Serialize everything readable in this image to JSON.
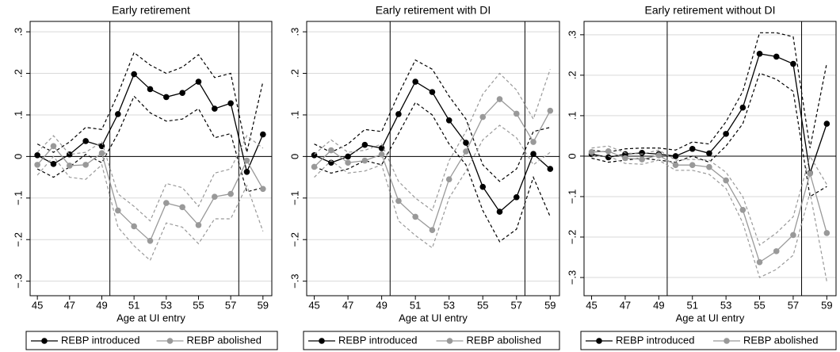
{
  "chart_data": [
    {
      "type": "line",
      "title": "Early retirement",
      "x_label": "Age at UI entry",
      "x": [
        45,
        46,
        47,
        48,
        49,
        50,
        51,
        52,
        53,
        54,
        55,
        56,
        57,
        58,
        59
      ],
      "xlim": [
        44.55,
        59.55
      ],
      "xticks": [
        45,
        47,
        49,
        51,
        53,
        55,
        57,
        59
      ],
      "ylim": [
        -0.335,
        0.325
      ],
      "yticks": [
        {
          "value": -0.3,
          "label": "−.3"
        },
        {
          "value": -0.2,
          "label": "−.2"
        },
        {
          "value": -0.1,
          "label": "−.1"
        },
        0,
        {
          "value": 0.1,
          "label": ".1"
        },
        {
          "value": 0.2,
          "label": ".2"
        },
        {
          "value": 0.3,
          "label": ".3"
        }
      ],
      "grid": true,
      "hline": 0,
      "vlines": [
        49.5,
        57.5
      ],
      "legend": "bottom",
      "series": [
        {
          "name": "REBP introduced",
          "color": "#000000",
          "values": [
            0.003,
            -0.018,
            0.005,
            0.037,
            0.025,
            0.102,
            0.198,
            0.162,
            0.143,
            0.153,
            0.18,
            0.115,
            0.128,
            -0.037,
            0.053
          ],
          "ci_upper": [
            0.03,
            0.01,
            0.035,
            0.07,
            0.065,
            0.15,
            0.25,
            0.22,
            0.2,
            0.215,
            0.245,
            0.19,
            0.2,
            0.01,
            0.18
          ],
          "ci_lower": [
            -0.03,
            -0.05,
            -0.025,
            0.005,
            -0.015,
            0.055,
            0.145,
            0.105,
            0.085,
            0.09,
            0.115,
            0.045,
            0.055,
            -0.085,
            -0.075
          ]
        },
        {
          "name": "REBP abolished",
          "color": "#999999",
          "values": [
            -0.02,
            0.025,
            -0.022,
            -0.02,
            0.008,
            -0.13,
            -0.168,
            -0.203,
            -0.112,
            -0.122,
            -0.165,
            -0.097,
            -0.09,
            -0.01,
            -0.078
          ],
          "ci_upper": [
            0.01,
            0.05,
            0.005,
            0.01,
            0.035,
            -0.09,
            -0.12,
            -0.155,
            -0.065,
            -0.075,
            -0.12,
            -0.04,
            -0.03,
            0.05,
            0.02
          ],
          "ci_lower": [
            -0.045,
            0,
            -0.05,
            -0.055,
            -0.02,
            -0.17,
            -0.215,
            -0.25,
            -0.16,
            -0.17,
            -0.21,
            -0.15,
            -0.15,
            -0.07,
            -0.18
          ]
        }
      ]
    },
    {
      "type": "line",
      "title": "Early retirement with DI",
      "x_label": "Age at UI entry",
      "x": [
        45,
        46,
        47,
        48,
        49,
        50,
        51,
        52,
        53,
        54,
        55,
        56,
        57,
        58,
        59
      ],
      "xlim": [
        44.55,
        59.55
      ],
      "xticks": [
        45,
        47,
        49,
        51,
        53,
        55,
        57,
        59
      ],
      "ylim": [
        -0.335,
        0.325
      ],
      "yticks": [
        {
          "value": -0.3,
          "label": "−.3"
        },
        {
          "value": -0.2,
          "label": "−.2"
        },
        {
          "value": -0.1,
          "label": "−.1"
        },
        0,
        {
          "value": 0.1,
          "label": ".1"
        },
        {
          "value": 0.2,
          "label": ".2"
        },
        {
          "value": 0.3,
          "label": ".3"
        }
      ],
      "grid": true,
      "hline": 0,
      "vlines": [
        49.5,
        57.5
      ],
      "legend": "bottom",
      "series": [
        {
          "name": "REBP introduced",
          "color": "#000000",
          "values": [
            0.003,
            -0.015,
            0.0,
            0.028,
            0.02,
            0.102,
            0.18,
            0.155,
            0.087,
            0.033,
            -0.073,
            -0.133,
            -0.098,
            0.006,
            -0.03
          ],
          "ci_upper": [
            0.03,
            0.01,
            0.03,
            0.065,
            0.06,
            0.15,
            0.232,
            0.21,
            0.145,
            0.09,
            -0.02,
            -0.06,
            -0.03,
            0.06,
            0.07
          ],
          "ci_lower": [
            -0.025,
            -0.04,
            -0.03,
            -0.01,
            -0.02,
            0.055,
            0.13,
            0.1,
            0.03,
            -0.02,
            -0.13,
            -0.205,
            -0.175,
            -0.05,
            -0.145
          ]
        },
        {
          "name": "REBP abolished",
          "color": "#999999",
          "values": [
            -0.025,
            0.015,
            -0.015,
            -0.01,
            0.005,
            -0.107,
            -0.145,
            -0.177,
            -0.055,
            0.012,
            0.095,
            0.138,
            0.103,
            0.035,
            0.11
          ],
          "ci_upper": [
            0.005,
            0.04,
            0.01,
            0.015,
            0.03,
            -0.06,
            -0.1,
            -0.13,
            -0.01,
            0.06,
            0.15,
            0.2,
            0.16,
            0.09,
            0.21
          ],
          "ci_lower": [
            -0.05,
            -0.01,
            -0.04,
            -0.035,
            -0.02,
            -0.155,
            -0.19,
            -0.22,
            -0.1,
            -0.035,
            0.04,
            0.075,
            0.045,
            -0.02,
            0.01
          ]
        }
      ]
    },
    {
      "type": "line",
      "title": "Early retirement without DI",
      "x_label": "Age at UI entry",
      "x": [
        45,
        46,
        47,
        48,
        49,
        50,
        51,
        52,
        53,
        54,
        55,
        56,
        57,
        58,
        59
      ],
      "xlim": [
        44.55,
        59.55
      ],
      "xticks": [
        45,
        47,
        49,
        51,
        53,
        55,
        57,
        59
      ],
      "ylim": [
        -0.345,
        0.333
      ],
      "yticks": [
        {
          "value": -0.3,
          "label": "−.3"
        },
        {
          "value": -0.2,
          "label": "−.2"
        },
        {
          "value": -0.1,
          "label": "−.1"
        },
        0,
        {
          "value": 0.1,
          "label": ".1"
        },
        {
          "value": 0.2,
          "label": ".2"
        },
        {
          "value": 0.3,
          "label": ".3"
        }
      ],
      "grid": true,
      "hline": 0,
      "vlines": [
        49.5,
        57.5
      ],
      "legend": "bottom",
      "series": [
        {
          "name": "REBP introduced",
          "color": "#000000",
          "values": [
            0.005,
            -0.003,
            0.005,
            0.008,
            0.005,
            0.0,
            0.018,
            0.007,
            0.055,
            0.12,
            0.253,
            0.246,
            0.228,
            -0.042,
            0.08
          ],
          "ci_upper": [
            0.015,
            0.01,
            0.018,
            0.02,
            0.02,
            0.015,
            0.035,
            0.03,
            0.085,
            0.16,
            0.305,
            0.305,
            0.295,
            0.02,
            0.23
          ],
          "ci_lower": [
            -0.005,
            -0.015,
            -0.01,
            -0.005,
            -0.01,
            -0.015,
            0.0,
            -0.015,
            0.025,
            0.08,
            0.205,
            0.19,
            0.16,
            -0.1,
            -0.075
          ]
        },
        {
          "name": "REBP abolished",
          "color": "#999999",
          "values": [
            0.01,
            0.012,
            -0.005,
            -0.008,
            0.002,
            -0.022,
            -0.022,
            -0.027,
            -0.06,
            -0.133,
            -0.262,
            -0.235,
            -0.195,
            -0.043,
            -0.19
          ],
          "ci_upper": [
            0.02,
            0.025,
            0.008,
            0.005,
            0.015,
            -0.01,
            -0.008,
            -0.01,
            -0.04,
            -0.1,
            -0.22,
            -0.19,
            -0.15,
            0.0,
            -0.07
          ],
          "ci_lower": [
            0.0,
            0.0,
            -0.018,
            -0.02,
            -0.01,
            -0.035,
            -0.035,
            -0.045,
            -0.08,
            -0.165,
            -0.3,
            -0.28,
            -0.245,
            -0.09,
            -0.31
          ]
        }
      ]
    }
  ]
}
